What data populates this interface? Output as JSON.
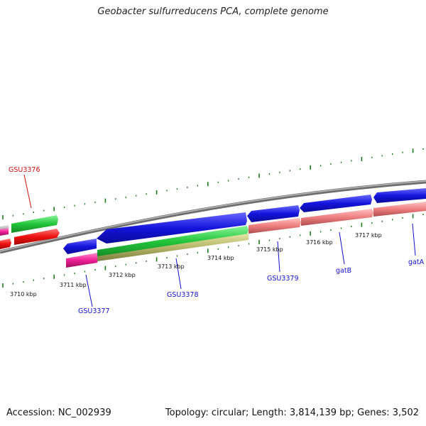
{
  "title": "Geobacter sulfurreducens PCA, complete genome",
  "footer": {
    "accession": "Accession: NC_002939",
    "summary": "Topology: circular; Length: 3,814,139 bp; Genes: 3,502"
  },
  "colors": {
    "backbone": "#8c8c8c",
    "blue_gene": "#1212d8",
    "green_gene": "#22c53a",
    "red_gene": "#ee1010",
    "pink_gene": "#ee1e96",
    "salmon_gene": "#ee7f7f",
    "olive_gene": "#b5b568",
    "tick": "#1f7a1f",
    "label_blue": "#1010c8",
    "label_red": "#d01010"
  },
  "tick_labels": [
    "3710 kbp",
    "3711 kbp",
    "3712 kbp",
    "3713 kbp",
    "3714 kbp",
    "3715 kbp",
    "3716 kbp",
    "3717 kbp"
  ],
  "gene_labels": {
    "gsu3376": "GSU3376",
    "gsu3377": "GSU3377",
    "gsu3378": "GSU3378",
    "gsu3379": "GSU3379",
    "gatb": "gatB",
    "gata": "gatA"
  }
}
